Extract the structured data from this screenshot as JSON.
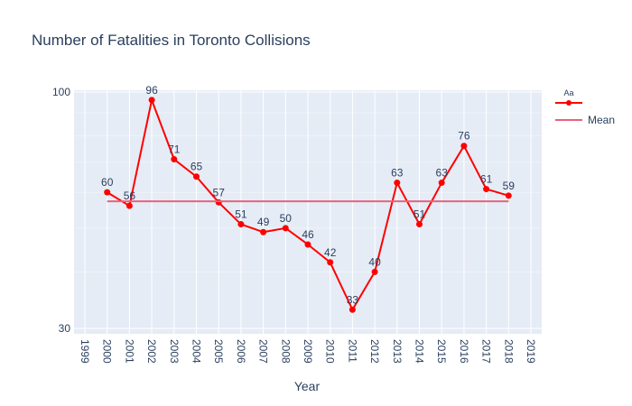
{
  "chart_data": {
    "type": "line",
    "title": "Number of Fatalities in Toronto Collisions",
    "xlabel": "Year",
    "ylabel": "",
    "x_range": [
      1999,
      2019
    ],
    "x_ticks": [
      "1999",
      "2000",
      "2001",
      "2002",
      "2003",
      "2004",
      "2005",
      "2006",
      "2007",
      "2008",
      "2009",
      "2010",
      "2011",
      "2012",
      "2013",
      "2014",
      "2015",
      "2016",
      "2017",
      "2018",
      "2019"
    ],
    "ylim": [
      30,
      100
    ],
    "y_ticks": [
      {
        "value": 30,
        "label": "30"
      },
      {
        "value": 100,
        "label": "100"
      }
    ],
    "grid": true,
    "legend_position": "top-right",
    "series": [
      {
        "name": "Aa",
        "color": "#ff0000",
        "mode": "lines+markers+text",
        "x": [
          2000,
          2001,
          2002,
          2003,
          2004,
          2005,
          2006,
          2007,
          2008,
          2009,
          2010,
          2011,
          2012,
          2013,
          2014,
          2015,
          2016,
          2017,
          2018
        ],
        "values": [
          60,
          56,
          96,
          71,
          65,
          57,
          51,
          49,
          50,
          46,
          42,
          33,
          40,
          63,
          51,
          63,
          76,
          61,
          59
        ],
        "labels": [
          "60",
          "56",
          "96",
          "71",
          "65",
          "57",
          "51",
          "49",
          "50",
          "46",
          "42",
          "33",
          "40",
          "63",
          "51",
          "63",
          "76",
          "61",
          "59"
        ]
      },
      {
        "name": "Mean",
        "color": "#e8637a",
        "mode": "lines",
        "x": [
          2000,
          2018
        ],
        "values": [
          57.3,
          57.3
        ]
      }
    ]
  }
}
